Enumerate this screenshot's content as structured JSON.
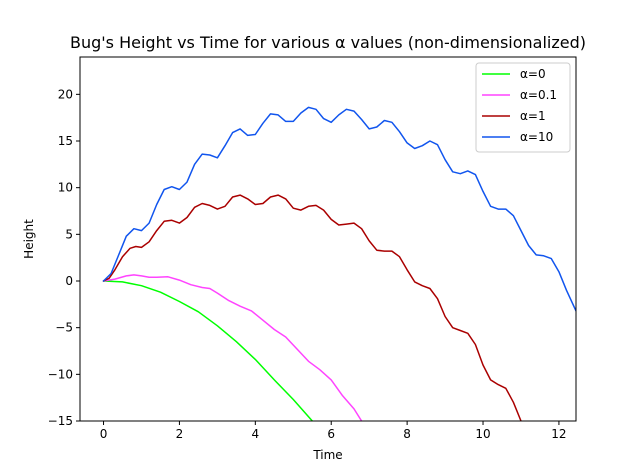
{
  "chart_data": {
    "type": "line",
    "title": "Bug's Height vs Time for various α values (non-dimensionalized)",
    "xlabel": "Time",
    "ylabel": "Height",
    "xlim": [
      -0.62,
      12.45
    ],
    "ylim": [
      -15,
      24
    ],
    "xticks": [
      0,
      2,
      4,
      6,
      8,
      10,
      12
    ],
    "yticks": [
      -15,
      -10,
      -5,
      0,
      5,
      10,
      15,
      20
    ],
    "grid": false,
    "legend_position": "top-right",
    "series": [
      {
        "name": "α=0",
        "color": "#00ff00",
        "x": [
          0,
          0.5,
          1.0,
          1.5,
          2.0,
          2.5,
          3.0,
          3.5,
          4.0,
          4.5,
          5.0,
          5.5
        ],
        "y": [
          0,
          -0.1,
          -0.5,
          -1.2,
          -2.2,
          -3.3,
          -4.8,
          -6.5,
          -8.4,
          -10.6,
          -12.7,
          -15.0
        ]
      },
      {
        "name": "α=0.1",
        "color": "#ff44ff",
        "x": [
          0,
          0.3,
          0.6,
          0.8,
          1.0,
          1.2,
          1.4,
          1.7,
          2.0,
          2.3,
          2.6,
          2.8,
          3.0,
          3.3,
          3.6,
          3.9,
          4.2,
          4.5,
          4.8,
          5.1,
          5.4,
          5.7,
          6.0,
          6.3,
          6.6,
          6.8
        ],
        "y": [
          0,
          0.2,
          0.55,
          0.65,
          0.55,
          0.4,
          0.4,
          0.45,
          0.1,
          -0.4,
          -0.7,
          -0.8,
          -1.3,
          -2.1,
          -2.7,
          -3.2,
          -4.2,
          -5.2,
          -6.0,
          -7.3,
          -8.6,
          -9.5,
          -10.6,
          -12.3,
          -13.7,
          -15.0
        ]
      },
      {
        "name": "α=1",
        "color": "#aa0000",
        "x": [
          0,
          0.15,
          0.3,
          0.5,
          0.7,
          0.85,
          1.0,
          1.2,
          1.4,
          1.6,
          1.8,
          2.0,
          2.2,
          2.4,
          2.6,
          2.8,
          3.0,
          3.2,
          3.4,
          3.6,
          3.8,
          4.0,
          4.2,
          4.4,
          4.6,
          4.8,
          5.0,
          5.2,
          5.4,
          5.6,
          5.8,
          6.0,
          6.2,
          6.4,
          6.6,
          6.8,
          7.0,
          7.2,
          7.4,
          7.6,
          7.8,
          8.0,
          8.2,
          8.4,
          8.6,
          8.8,
          9.0,
          9.2,
          9.4,
          9.6,
          9.8,
          10.0,
          10.2,
          10.4,
          10.6,
          10.8,
          11.0
        ],
        "y": [
          0,
          0.3,
          1.2,
          2.6,
          3.5,
          3.7,
          3.6,
          4.2,
          5.4,
          6.4,
          6.5,
          6.2,
          6.8,
          7.9,
          8.3,
          8.1,
          7.7,
          8.0,
          9.0,
          9.2,
          8.8,
          8.2,
          8.3,
          9.0,
          9.2,
          8.8,
          7.8,
          7.6,
          8.0,
          8.1,
          7.6,
          6.6,
          6.0,
          6.1,
          6.2,
          5.6,
          4.3,
          3.3,
          3.2,
          3.2,
          2.6,
          1.2,
          -0.1,
          -0.5,
          -0.8,
          -1.9,
          -3.8,
          -5.0,
          -5.3,
          -5.6,
          -6.8,
          -9.0,
          -10.6,
          -11.1,
          -11.5,
          -13.0,
          -15.0
        ]
      },
      {
        "name": "α=10",
        "color": "#1155ee",
        "x": [
          0,
          0.2,
          0.4,
          0.6,
          0.8,
          1.0,
          1.2,
          1.4,
          1.6,
          1.8,
          2.0,
          2.2,
          2.4,
          2.6,
          2.8,
          3.0,
          3.2,
          3.4,
          3.6,
          3.8,
          4.0,
          4.2,
          4.4,
          4.6,
          4.8,
          5.0,
          5.2,
          5.4,
          5.6,
          5.8,
          6.0,
          6.2,
          6.4,
          6.6,
          6.8,
          7.0,
          7.2,
          7.4,
          7.6,
          7.8,
          8.0,
          8.2,
          8.4,
          8.6,
          8.8,
          9.0,
          9.2,
          9.4,
          9.6,
          9.8,
          10.0,
          10.2,
          10.4,
          10.6,
          10.8,
          11.0,
          11.2,
          11.4,
          11.6,
          11.8,
          12.0,
          12.2,
          12.45
        ],
        "y": [
          0,
          0.8,
          2.8,
          4.8,
          5.6,
          5.4,
          6.2,
          8.2,
          9.8,
          10.1,
          9.8,
          10.6,
          12.5,
          13.6,
          13.5,
          13.2,
          14.5,
          15.9,
          16.3,
          15.6,
          15.7,
          16.9,
          17.9,
          17.8,
          17.1,
          17.1,
          18.0,
          18.6,
          18.4,
          17.4,
          17.0,
          17.8,
          18.4,
          18.2,
          17.3,
          16.3,
          16.5,
          17.2,
          17.0,
          16.0,
          14.8,
          14.2,
          14.5,
          15.0,
          14.6,
          13.0,
          11.7,
          11.5,
          11.8,
          11.4,
          9.6,
          8.0,
          7.7,
          7.7,
          7.0,
          5.4,
          3.8,
          2.8,
          2.7,
          2.4,
          1.0,
          -1.0,
          -3.2
        ]
      }
    ]
  }
}
